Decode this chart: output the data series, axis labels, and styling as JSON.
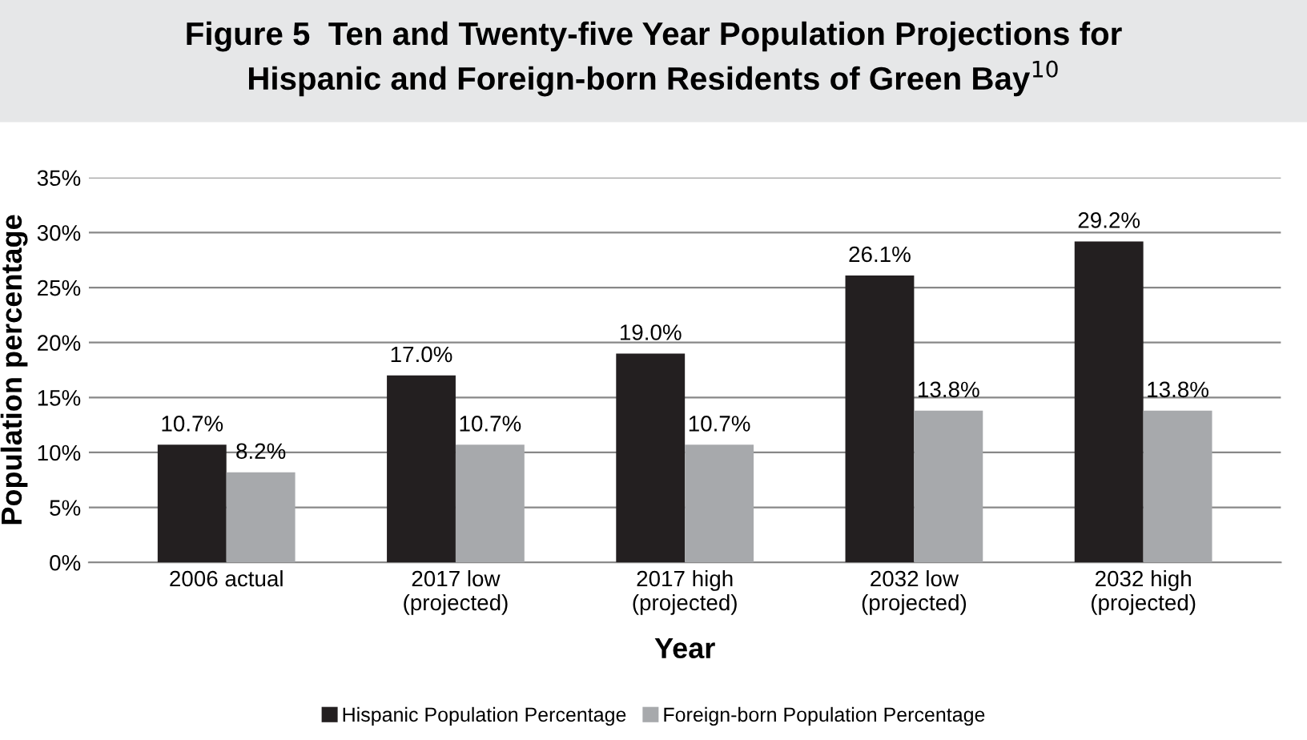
{
  "chart_data": {
    "type": "bar",
    "title": "Figure 5  Ten and Twenty-five Year Population Projections for\nHispanic and Foreign-born Residents of Green Bay$^{10}$",
    "xlabel": "Year",
    "ylabel": "Population percentage",
    "categories": [
      "2006 actual",
      "2017 low\n(projected)",
      "2017 high\n(projected)",
      "2032 low\n(projected)",
      "2032 high\n(projected)"
    ],
    "series": [
      {
        "name": "Hispanic Population Percentage",
        "color": "#231f20",
        "values": [
          10.7,
          17.0,
          19.0,
          26.1,
          29.2
        ],
        "value_labels": [
          "10.7%",
          "17.0%",
          "19.0%",
          "26.1%",
          "29.2%"
        ]
      },
      {
        "name": "Foreign-born Population Percentage",
        "color": "#a7a9ac",
        "values": [
          8.2,
          10.7,
          10.7,
          13.8,
          13.8
        ],
        "value_labels": [
          "8.2%",
          "10.7%",
          "10.7%",
          "13.8%",
          "13.8%"
        ]
      }
    ],
    "ylim": [
      0,
      35
    ],
    "yticks": [
      {
        "value": 0,
        "label": "0%"
      },
      {
        "value": 5,
        "label": "5%"
      },
      {
        "value": 10,
        "label": "10%"
      },
      {
        "value": 15,
        "label": "15%"
      },
      {
        "value": 20,
        "label": "20%"
      },
      {
        "value": 25,
        "label": "25%"
      },
      {
        "value": 30,
        "label": "30%"
      },
      {
        "value": 35,
        "label": "35%"
      }
    ],
    "grid": "y",
    "legend": "bottom"
  }
}
